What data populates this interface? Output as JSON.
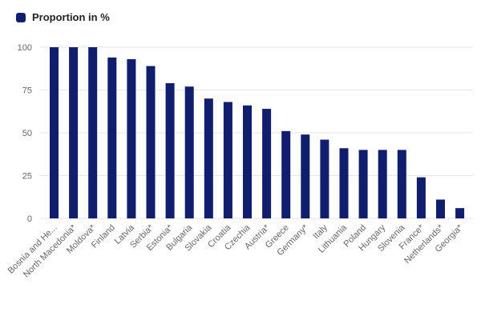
{
  "legend": {
    "label": "Proportion in %",
    "color": "#0f1f6e"
  },
  "chart_data": {
    "type": "bar",
    "series": [
      {
        "name": "Proportion in %",
        "values": [
          100,
          100,
          100,
          94,
          93,
          89,
          79,
          77,
          70,
          68,
          66,
          64,
          51,
          49,
          46,
          41,
          40,
          40,
          40,
          24,
          11,
          6
        ]
      }
    ],
    "categories": [
      "Bosnia and He...",
      "North Macedonia*",
      "Moldova*",
      "Finland",
      "Latvia",
      "Serbia*",
      "Estonia*",
      "Bulgaria",
      "Slovakia",
      "Croatia",
      "Czechia",
      "Austria*",
      "Greece",
      "Germany*",
      "Italy",
      "Lithuania",
      "Poland",
      "Hungary",
      "Slovenia",
      "France*",
      "Netherlands*",
      "Georgia*"
    ],
    "ylim": [
      0,
      100
    ],
    "yticks": [
      "0",
      "25",
      "50",
      "75",
      "100"
    ],
    "grid": true,
    "legend_position": "top-left",
    "bar_color": "#0f1f6e"
  }
}
